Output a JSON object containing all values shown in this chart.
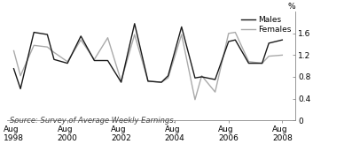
{
  "source": "Source: Survey of Average Weekly Earnings.",
  "ylabel": "%",
  "ylim": [
    0,
    2.0
  ],
  "yticks": [
    0,
    0.4,
    0.8,
    1.2,
    1.6
  ],
  "ytick_labels": [
    "0",
    "0.4",
    "0.8",
    "1.2",
    "1.6"
  ],
  "xlim": [
    1998.25,
    2009.0
  ],
  "xtick_positions": [
    1998.5,
    2000.5,
    2002.5,
    2004.5,
    2006.5,
    2008.5
  ],
  "xtick_labels": [
    "Aug\n1998",
    "Aug\n2000",
    "Aug\n2002",
    "Aug\n2004",
    "Aug\n2006",
    "Aug\n2008"
  ],
  "males_x": [
    1998.5,
    1998.75,
    1999.25,
    1999.75,
    2000.0,
    2000.5,
    2001.0,
    2001.5,
    2002.0,
    2002.5,
    2003.0,
    2003.5,
    2004.0,
    2004.25,
    2004.75,
    2005.25,
    2005.5,
    2006.0,
    2006.5,
    2006.75,
    2007.25,
    2007.75,
    2008.0,
    2008.5
  ],
  "males_y": [
    0.95,
    0.58,
    1.62,
    1.58,
    1.12,
    1.05,
    1.55,
    1.1,
    1.1,
    0.7,
    1.78,
    0.72,
    0.7,
    0.82,
    1.72,
    0.78,
    0.8,
    0.75,
    1.45,
    1.48,
    1.05,
    1.05,
    1.42,
    1.48
  ],
  "females_x": [
    1998.5,
    1998.75,
    1999.25,
    1999.75,
    2000.0,
    2000.5,
    2001.0,
    2001.5,
    2002.0,
    2002.5,
    2003.0,
    2003.5,
    2004.0,
    2004.25,
    2004.75,
    2005.25,
    2005.5,
    2006.0,
    2006.5,
    2006.75,
    2007.25,
    2007.75,
    2008.0,
    2008.5
  ],
  "females_y": [
    1.28,
    0.82,
    1.38,
    1.35,
    1.25,
    1.08,
    1.48,
    1.12,
    1.52,
    0.72,
    1.58,
    0.72,
    0.7,
    0.78,
    1.58,
    0.38,
    0.82,
    0.52,
    1.6,
    1.62,
    1.08,
    1.05,
    1.18,
    1.2
  ],
  "males_color": "#1a1a1a",
  "females_color": "#aaaaaa",
  "bg_color": "#ffffff",
  "line_width": 1.0,
  "legend_fontsize": 6.5,
  "tick_fontsize": 6.5,
  "source_fontsize": 6.0
}
